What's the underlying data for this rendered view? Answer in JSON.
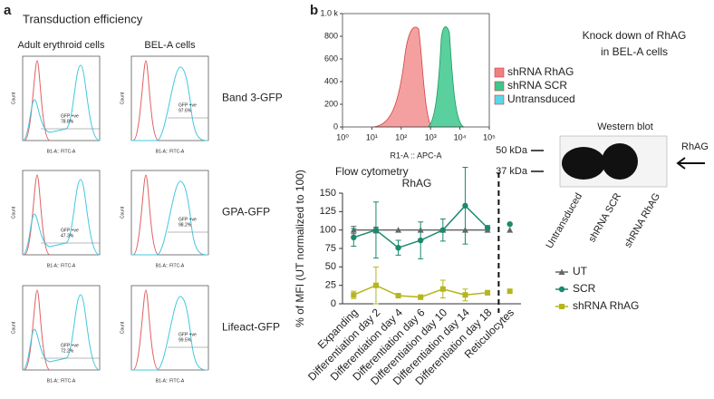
{
  "panel_a": {
    "label": "a",
    "title": "Transduction efficiency",
    "columns": [
      "Adult erythroid cells",
      "BEL-A cells"
    ],
    "y_label": "Count",
    "x_label": "B1-A:: FITC-A",
    "rows": [
      {
        "name": "Band 3-GFP",
        "plots": [
          {
            "gate": "GFP +ve",
            "percent": "78.8%"
          },
          {
            "gate": "GFP +ve",
            "percent": "97.6%"
          }
        ]
      },
      {
        "name": "GPA-GFP",
        "plots": [
          {
            "gate": "GFP +ve",
            "percent": "47.3%"
          },
          {
            "gate": "GFP +ve",
            "percent": "98.2%"
          }
        ]
      },
      {
        "name": "Lifeact-GFP",
        "plots": [
          {
            "gate": "GFP +ve",
            "percent": "72.2%"
          },
          {
            "gate": "GFP +ve",
            "percent": "99.5%"
          }
        ]
      }
    ]
  },
  "panel_b": {
    "label": "b",
    "heading": [
      "Knock down of RhAG",
      "in BEL-A cells"
    ],
    "western_blot": {
      "title": "Western blot",
      "markers": [
        "50 kDa",
        "37 kDa"
      ],
      "band": "RhAG",
      "lanes": [
        "Untransduced",
        "shRNA SCR",
        "shRNA RhAG"
      ]
    },
    "flow_title": "Flow cytometry"
  },
  "chart_data": [
    {
      "type": "area",
      "x_label": "R1-A :: APC-A",
      "log_x": true,
      "series": [
        {
          "name": "shRNA RhAG",
          "color": "#f08080"
        },
        {
          "name": "shRNA SCR",
          "color": "#3cc88c"
        },
        {
          "name": "Untransduced",
          "color": "#5ad8e8"
        }
      ],
      "xlim": [
        1,
        100000
      ],
      "xticks": [
        {
          "value": 1,
          "label": "10⁰"
        },
        {
          "value": 10,
          "label": "10¹"
        },
        {
          "value": 100,
          "label": "10²"
        },
        {
          "value": 1000,
          "label": "10³"
        },
        {
          "value": 10000,
          "label": "10⁴"
        },
        {
          "value": 100000,
          "label": "10⁵"
        }
      ],
      "ylim": [
        0,
        1000
      ],
      "yticks": [
        0,
        200,
        400,
        600,
        800,
        {
          "value": 1000,
          "label": "1.0 k"
        }
      ]
    },
    {
      "type": "line",
      "title": "RhAG",
      "y_label": "% of MFI (UT normalized to 100)",
      "categories": [
        "Expanding",
        "Differentiation day 2",
        "Differentiation day 4",
        "Differentiation day 6",
        "Differentiation day 10",
        "Differentiation day 14",
        "Differentiation day 18",
        "Reticulocytes"
      ],
      "series": [
        {
          "name": "UT",
          "color": "#666666",
          "marker": "triangle",
          "values": [
            100,
            100,
            100,
            100,
            100,
            100,
            100,
            100
          ],
          "errors": [
            5,
            4,
            0,
            0,
            0,
            0,
            0,
            0
          ]
        },
        {
          "name": "SCR",
          "color": "#1a8a6e",
          "marker": "circle",
          "values": [
            90,
            100,
            76,
            86,
            100,
            133,
            103,
            108
          ],
          "errors": [
            12,
            38,
            10,
            25,
            15,
            52,
            3,
            0
          ]
        },
        {
          "name": "shRNA RhAG",
          "color": "#b5b51e",
          "marker": "square",
          "values": [
            12,
            25,
            11,
            9,
            20,
            12,
            15,
            17
          ],
          "errors": [
            5,
            25,
            3,
            3,
            12,
            8,
            3,
            0
          ]
        }
      ],
      "ylim": [
        0,
        150
      ],
      "yticks": [
        0,
        25,
        50,
        75,
        100,
        125,
        150
      ]
    }
  ]
}
